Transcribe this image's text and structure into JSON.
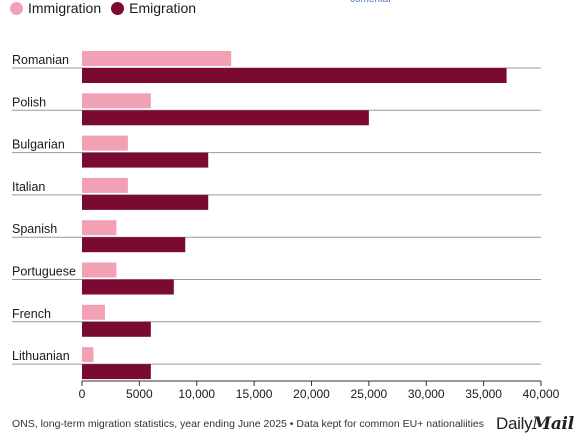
{
  "header": {
    "link_text": "comentar"
  },
  "legend": [
    {
      "label": "Immigration",
      "color": "#f2a1b4"
    },
    {
      "label": "Emigration",
      "color": "#7b0a33"
    }
  ],
  "footer": {
    "source": "ONS, long-term migration statistics, year ending June 2025 • Data kept for common EU+ nationaliities",
    "logo_daily": "Daily",
    "logo_mail": "Mail"
  },
  "chart_data": {
    "type": "bar",
    "orientation": "horizontal",
    "title": "",
    "xlabel": "",
    "ylabel": "",
    "categories": [
      "Romanian",
      "Polish",
      "Bulgarian",
      "Italian",
      "Spanish",
      "Portuguese",
      "French",
      "Lithuanian"
    ],
    "series": [
      {
        "name": "Immigration",
        "color": "#f2a1b4",
        "values": [
          13000,
          6000,
          4000,
          4000,
          3000,
          3000,
          2000,
          1000
        ]
      },
      {
        "name": "Emigration",
        "color": "#7b0a33",
        "values": [
          37000,
          25000,
          11000,
          11000,
          9000,
          8000,
          6000,
          6000
        ]
      }
    ],
    "xlim": [
      0,
      40000
    ],
    "xticks": [
      0,
      5000,
      10000,
      15000,
      20000,
      25000,
      30000,
      35000,
      40000
    ],
    "xtick_labels": [
      "0",
      "5000",
      "10,000",
      "15,000",
      "20,000",
      "25,000",
      "30,000",
      "35,000",
      "40,000"
    ],
    "legend_position": "top-left",
    "grid": false
  }
}
